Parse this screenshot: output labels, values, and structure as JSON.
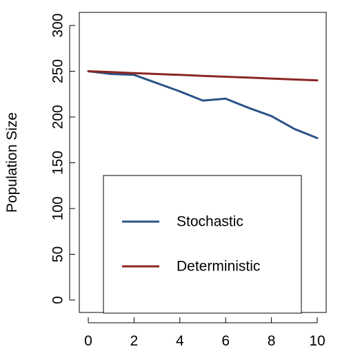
{
  "chart_data": {
    "type": "line",
    "title": "",
    "xlabel": "",
    "ylabel": "Population Size",
    "xlim": [
      0,
      10
    ],
    "ylim": [
      0,
      300
    ],
    "x_ticks": [
      0,
      2,
      4,
      6,
      8,
      10
    ],
    "y_ticks": [
      0,
      50,
      100,
      150,
      200,
      250,
      300
    ],
    "grid": false,
    "legend_position": "bottom-center",
    "series": [
      {
        "name": "Stochastic",
        "color": "#2b5388",
        "x": [
          0,
          1,
          2,
          3,
          4,
          5,
          6,
          7,
          8,
          9,
          10
        ],
        "values": [
          250,
          247,
          246,
          237,
          228,
          218,
          220,
          210,
          201,
          187,
          177
        ]
      },
      {
        "name": "Deterministic",
        "color": "#8b2522",
        "x": [
          0,
          1,
          2,
          3,
          4,
          5,
          6,
          7,
          8,
          9,
          10
        ],
        "values": [
          250,
          249,
          248,
          247,
          246,
          245,
          244,
          243,
          242,
          241,
          240
        ]
      }
    ]
  }
}
